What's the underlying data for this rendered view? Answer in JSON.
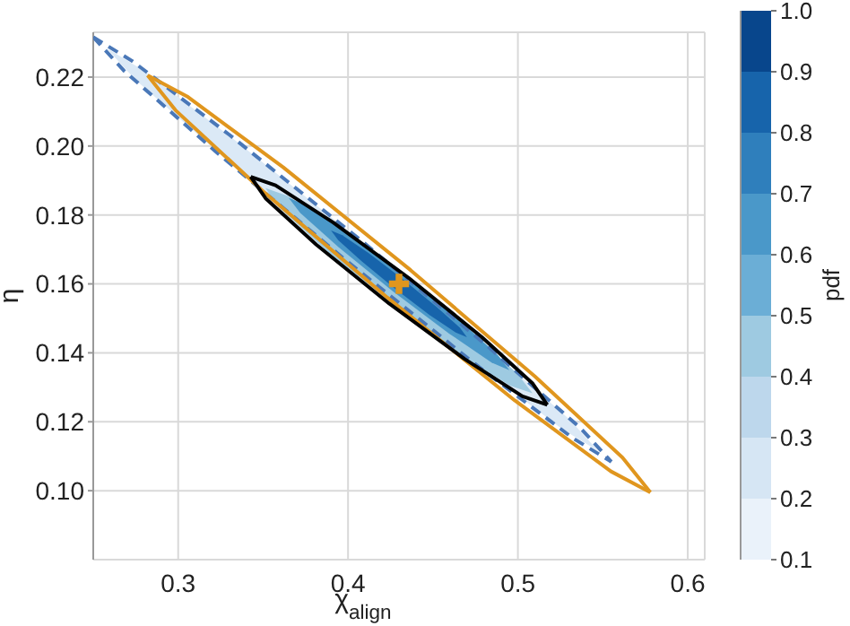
{
  "chart_data": {
    "type": "line",
    "xlabel": "χ$_{align}$",
    "ylabel": "η",
    "clabel": "pdf",
    "xlim": [
      0.25,
      0.61
    ],
    "ylim": [
      0.08,
      0.233
    ],
    "xticks": [
      0.3,
      0.4,
      0.5,
      0.6
    ],
    "yticks": [
      {
        "value": 0.1,
        "label": "0.10"
      },
      {
        "value": 0.12,
        "label": "0.12"
      },
      {
        "value": 0.14,
        "label": "0.14"
      },
      {
        "value": 0.16,
        "label": "0.16"
      },
      {
        "value": 0.18,
        "label": "0.18"
      },
      {
        "value": 0.2,
        "label": "0.20"
      },
      {
        "value": 0.22,
        "label": "0.22"
      }
    ],
    "clim": [
      0.1,
      1.0
    ],
    "cticks": [
      0.1,
      0.2,
      0.3,
      0.4,
      0.5,
      0.6,
      0.7,
      0.8,
      0.9,
      {
        "value": 1.0,
        "label": "1.0"
      }
    ],
    "grid": true,
    "series": [
      {
        "type": "area",
        "color": "#dbe9f6",
        "x": [
          0.5474,
          0.5303,
          0.4789,
          0.407,
          0.3339,
          0.2793,
          0.2576,
          0.2747,
          0.3261,
          0.398,
          0.4711,
          0.5257,
          0.5474
        ],
        "values": [
          0.1115,
          0.1207,
          0.143,
          0.1727,
          0.2015,
          0.222,
          0.2285,
          0.2193,
          0.197,
          null,
          0.1385,
          0.118,
          0.1115
        ]
      },
      {
        "type": "area",
        "color": "#9ecae1",
        "x": [
          0.5086,
          0.4997,
          0.4738,
          0.4352,
          0.3952,
          0.3646,
          0.3514,
          0.3594,
          0.3862,
          0.4248,
          0.4648,
          0.4954,
          0.5086
        ],
        "values": [
          0.1283,
          0.1339,
          0.1459,
          0.1613,
          0.1758,
          0.1855,
          0.1878,
          0.1821,
          0.1701,
          0.1547,
          0.1398,
          0.1305,
          0.1283
        ]
      },
      {
        "type": "area",
        "color": "#4a98c9",
        "x": [
          0.495,
          0.4881,
          0.4655,
          0.4335,
          0.4005,
          0.3755,
          0.365,
          0.3719,
          0.3945,
          0.4265,
          0.4595,
          0.4845,
          0.495
        ],
        "values": [
          0.135,
          0.1394,
          0.1494,
          0.1622,
          0.1744,
          0.1828,
          0.185,
          0.1806,
          0.1706,
          0.1578,
          0.1456,
          0.1372,
          0.135
        ]
      },
      {
        "type": "area",
        "color": "#1764ab",
        "x": [
          0.47,
          0.4658,
          0.452,
          0.4323,
          0.412,
          0.3966,
          0.39,
          0.3942,
          0.408,
          0.4277,
          0.448,
          0.4634,
          0.47
        ],
        "values": [
          0.1445,
          0.1473,
          0.1534,
          0.1614,
          0.169,
          0.1741,
          0.1755,
          0.1727,
          0.1666,
          0.1586,
          0.151,
          0.1459,
          0.1445
        ]
      },
      {
        "type": "line",
        "color": "#4a78b8",
        "line_style": "dashed",
        "x": [
          0.25,
          0.2728,
          0.3303,
          0.4072,
          0.4829,
          0.537,
          0.555
        ],
        "values": [
          0.2316,
          0.2247,
          0.2032,
          0.1728,
          0.1416,
          0.1181,
          0.1084
        ]
      },
      {
        "type": "line",
        "color": "#4a78b8",
        "line_style": "dashed",
        "x": [
          0.25,
          0.268,
          0.3221,
          0.3978,
          0.4747,
          0.5322,
          0.555
        ],
        "values": [
          0.2316,
          0.2219,
          0.1984,
          0.1672,
          0.1368,
          0.1153,
          0.1084
        ]
      },
      {
        "type": "line",
        "color": "#e0961e",
        "line_style": "solid",
        "x": [
          0.282,
          0.3052,
          0.3619,
          0.4368,
          0.5099,
          0.5616,
          0.578
        ],
        "values": [
          0.2205,
          0.2144,
          0.1938,
          0.164,
          0.1332,
          0.1096,
          0.0995
        ]
      },
      {
        "type": "line",
        "color": "#e0961e",
        "line_style": "solid",
        "x": [
          0.282,
          0.2984,
          0.3501,
          0.4232,
          0.4981,
          0.5548,
          0.578
        ],
        "values": [
          0.2205,
          0.2104,
          0.1868,
          0.156,
          0.1262,
          0.1056,
          0.0995
        ]
      },
      {
        "type": "line",
        "color": "#000000",
        "line_style": "solid",
        "x": [
          0.3427,
          0.3573,
          0.3913,
          0.4358,
          0.4787,
          0.5085,
          0.5173
        ],
        "values": [
          0.1911,
          0.1886,
          0.1778,
          0.1617,
          0.1446,
          0.1312,
          0.1249
        ]
      },
      {
        "type": "line",
        "color": "#000000",
        "line_style": "solid",
        "x": [
          0.3427,
          0.3515,
          0.3813,
          0.4242,
          0.4687,
          0.5027,
          0.5173
        ],
        "values": [
          0.1911,
          0.1848,
          0.1714,
          0.1543,
          0.1382,
          0.1274,
          0.1249
        ]
      },
      {
        "type": "scatter",
        "color": "#e0961e",
        "marker": "cross",
        "x": [
          0.43
        ],
        "values": [
          0.16
        ]
      }
    ]
  }
}
